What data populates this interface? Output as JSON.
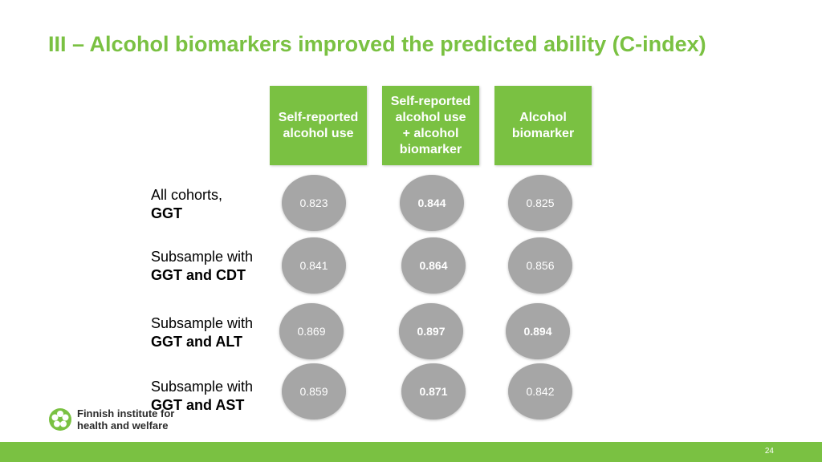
{
  "title": "III – Alcohol biomarkers improved the predicted ability (C-index)",
  "columns": [
    "Self-reported\nalcohol use",
    "Self-reported\nalcohol use\n+ alcohol\nbiomarker",
    "Alcohol\nbiomarker"
  ],
  "rows": [
    {
      "line1": "All cohorts,",
      "line2": "GGT",
      "values": [
        "0.823",
        "0.844",
        "0.825"
      ]
    },
    {
      "line1": "Subsample with",
      "line2": "GGT and CDT",
      "values": [
        "0.841",
        "0.864",
        "0.856"
      ]
    },
    {
      "line1": "Subsample with",
      "line2": "GGT and ALT",
      "values": [
        "0.869",
        "0.897",
        "0.894"
      ]
    },
    {
      "line1": "Subsample with",
      "line2": "GGT and AST",
      "values": [
        "0.859",
        "0.871",
        "0.842"
      ]
    }
  ],
  "logo": {
    "line1": "Finnish institute for",
    "line2": "health and welfare"
  },
  "page_number": "24",
  "colors": {
    "accent": "#7ac142",
    "circle": "#a6a6a6"
  }
}
